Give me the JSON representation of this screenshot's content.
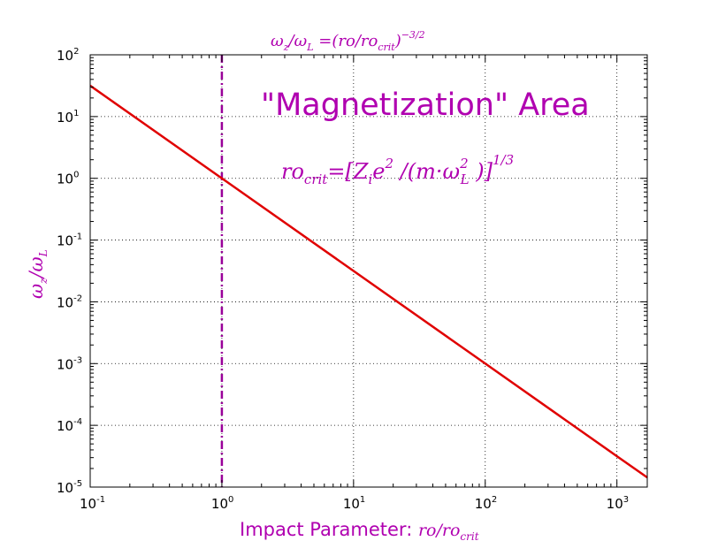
{
  "chart_data": {
    "type": "line",
    "title": "ω_z/ω_L =(ro/ro_crit)^-3/2",
    "xlabel": "Impact Parameter: ro/ro_crit",
    "ylabel": "ω_z/ω_L",
    "xscale": "log",
    "yscale": "log",
    "xlim": [
      0.1,
      1700
    ],
    "ylim": [
      1e-05,
      100
    ],
    "grid": true,
    "x_ticks": [
      {
        "base": "10",
        "exp": "-1"
      },
      {
        "base": "10",
        "exp": "0"
      },
      {
        "base": "10",
        "exp": "1"
      },
      {
        "base": "10",
        "exp": "2"
      },
      {
        "base": "10",
        "exp": "3"
      }
    ],
    "y_ticks": [
      {
        "base": "10",
        "exp": "-5"
      },
      {
        "base": "10",
        "exp": "-4"
      },
      {
        "base": "10",
        "exp": "-3"
      },
      {
        "base": "10",
        "exp": "-2"
      },
      {
        "base": "10",
        "exp": "-1"
      },
      {
        "base": "10",
        "exp": "0"
      },
      {
        "base": "10",
        "exp": "1"
      },
      {
        "base": "10",
        "exp": "2"
      }
    ],
    "series": [
      {
        "style": "solid",
        "color": "#e00000",
        "x": [
          0.1,
          1,
          10,
          100,
          1000,
          1700
        ],
        "y": [
          31.6,
          1.0,
          0.0316,
          0.001,
          3.16e-05,
          1.43e-05
        ]
      }
    ],
    "vlines": [
      {
        "x": 1,
        "color": "#990099",
        "style": "dash-dot"
      }
    ],
    "annotations": {
      "area_title": "\"Magnetization\" Area",
      "formula": "ro_crit=[Z_i e^2 /(m·ω_L^2 )]^1/3"
    }
  },
  "colors": {
    "accent": "#b000b0",
    "curve": "#e00000",
    "vline": "#990099"
  }
}
